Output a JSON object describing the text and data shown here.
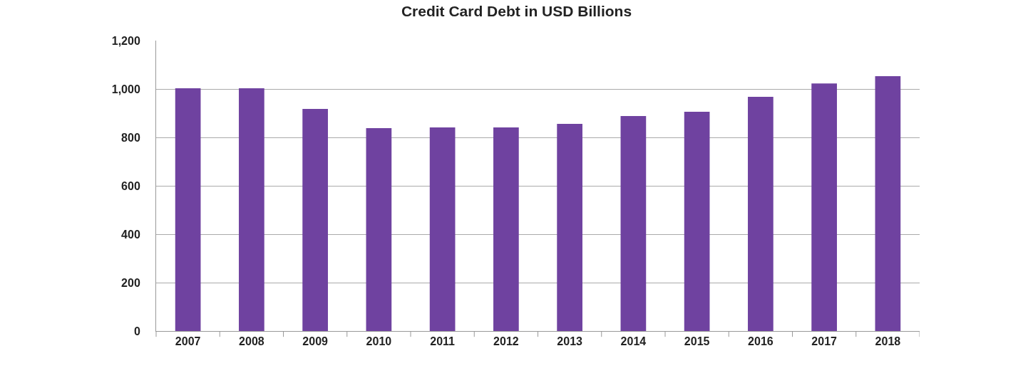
{
  "chart_data": {
    "type": "bar",
    "title": "Credit Card Debt in USD Billions",
    "categories": [
      "2007",
      "2008",
      "2009",
      "2010",
      "2011",
      "2012",
      "2013",
      "2014",
      "2015",
      "2016",
      "2017",
      "2018"
    ],
    "values": [
      1003,
      1003,
      918,
      838,
      841,
      841,
      856,
      888,
      906,
      968,
      1023,
      1053
    ],
    "color": "#6f42a0",
    "ylim": [
      0,
      1200
    ],
    "yticks": [
      0,
      {
        "value": 200,
        "label": "200"
      },
      {
        "value": 400,
        "label": "400"
      },
      {
        "value": 600,
        "label": "600"
      },
      {
        "value": 800,
        "label": "800"
      },
      {
        "value": 1000,
        "label": "1,000"
      },
      {
        "value": 1200,
        "label": "1,200"
      }
    ],
    "grid": "y",
    "legend": false
  }
}
